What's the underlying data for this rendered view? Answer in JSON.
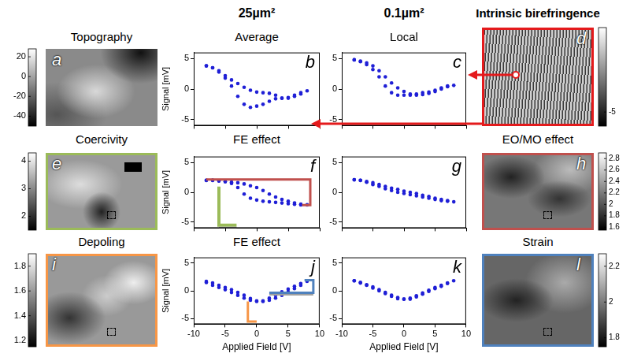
{
  "header_labels": [
    "25µm²",
    "0.1µm²"
  ],
  "maps": [
    {
      "letter": "a",
      "title": "Topography",
      "colorbar": {
        "range": [
          -50,
          28
        ],
        "ticks": [
          20,
          0,
          -20,
          -40
        ]
      }
    },
    {
      "letter": "d",
      "title": "Intrinsic birefringence",
      "colorbar": {
        "range": [
          -7,
          7
        ],
        "ticks": [
          -5
        ]
      },
      "color": "#e41a1c"
    },
    {
      "letter": "e",
      "title": "Coercivity",
      "colorbar": {
        "range": [
          1.5,
          4.3
        ],
        "ticks": [
          4,
          3,
          2
        ]
      },
      "color": "#9bbb59"
    },
    {
      "letter": "h",
      "title": "EO/MO effect",
      "colorbar": {
        "range": [
          1.55,
          2.9
        ],
        "ticks": [
          2.8,
          2.6,
          2.4,
          2.2,
          2,
          1.8,
          1.6
        ]
      },
      "color": "#c0504d"
    },
    {
      "letter": "i",
      "title": "Depoling",
      "colorbar": {
        "range": [
          1.15,
          1.9
        ],
        "ticks": [
          1.8,
          1.6,
          1.4,
          1.2
        ]
      },
      "color": "#f79646"
    },
    {
      "letter": "l",
      "title": "Strain",
      "colorbar": {
        "range": [
          1.75,
          2.27
        ],
        "ticks": [
          2.2,
          2,
          1.8
        ]
      },
      "color": "#4f81bd"
    }
  ],
  "chart_data": [
    {
      "letter": "b",
      "type": "scatter",
      "title": "Average",
      "y_label": "Signal [mV]",
      "x": [
        -8,
        -7,
        -6,
        -5,
        -4,
        -3,
        -2,
        -1,
        0,
        1,
        2,
        3,
        4,
        5,
        6,
        7,
        8,
        7,
        6,
        5,
        4,
        3,
        2,
        1,
        0,
        -1,
        -2,
        -3,
        -4,
        -5,
        -6,
        -7,
        -8
      ],
      "values": [
        3.8,
        3.5,
        2.8,
        1.8,
        0.5,
        -1.2,
        -2.5,
        -3.0,
        -2.8,
        -2.5,
        -2.0,
        -1.6,
        -1.5,
        -1.4,
        -1.0,
        -0.6,
        -0.3,
        -0.8,
        -1.2,
        -1.5,
        -1.5,
        -1.0,
        -0.7,
        -0.6,
        -0.5,
        -0.2,
        0.3,
        0.9,
        1.5,
        2.2,
        3.0,
        3.5,
        3.8
      ],
      "color": "#1f1fd6",
      "marker": "circle",
      "xlim": [
        -10,
        10
      ],
      "ylim": [
        -6,
        6
      ],
      "xticks": [
        -10,
        -5,
        0,
        5,
        10
      ],
      "yticks": [
        -5,
        0,
        5
      ],
      "tick_labels": "y",
      "grid": false
    },
    {
      "letter": "c",
      "type": "scatter",
      "title": "Local",
      "x": [
        -8,
        -7,
        -6,
        -5,
        -4,
        -3,
        -2,
        -1,
        0,
        1,
        2,
        3,
        4,
        5,
        6,
        7,
        8,
        7,
        6,
        5,
        4,
        3,
        2,
        1,
        0,
        -1,
        -2,
        -3,
        -4,
        -5,
        -6,
        -7,
        -8
      ],
      "values": [
        4.8,
        4.5,
        4.0,
        3.2,
        2.0,
        0.5,
        -0.6,
        -1.0,
        -1.0,
        -1.0,
        -0.8,
        -0.6,
        -0.5,
        -0.2,
        0.2,
        0.5,
        0.6,
        0.4,
        0.0,
        -0.4,
        -0.7,
        -0.9,
        -1.0,
        -0.8,
        -0.4,
        0.2,
        1.0,
        2.0,
        3.0,
        3.8,
        4.3,
        4.6,
        4.8
      ],
      "color": "#1f1fd6",
      "marker": "circle",
      "xlim": [
        -10,
        10
      ],
      "ylim": [
        -6,
        6
      ],
      "xticks": [
        -10,
        -5,
        0,
        5,
        10
      ],
      "yticks": [
        -5,
        0,
        5
      ],
      "tick_labels": "y",
      "grid": false
    },
    {
      "letter": "f",
      "type": "scatter",
      "title": "FE effect",
      "y_label": "Signal [mV]",
      "x": [
        -8,
        -7,
        -6,
        -5,
        -4,
        -3,
        -2,
        -1,
        0,
        1,
        2,
        3,
        4,
        5,
        6,
        7,
        8,
        7,
        6,
        5,
        4,
        3,
        2,
        1,
        0,
        -1,
        -2,
        -3,
        -4,
        -5,
        -6,
        -7,
        -8
      ],
      "values": [
        2.0,
        2.0,
        1.9,
        1.8,
        1.5,
        0.8,
        -0.3,
        -1.0,
        -1.3,
        -1.5,
        -1.6,
        -1.7,
        -1.8,
        -1.9,
        -2.0,
        -2.1,
        -2.1,
        -2.0,
        -1.8,
        -1.5,
        -1.2,
        -0.8,
        -0.3,
        0.3,
        0.8,
        1.1,
        1.4,
        1.6,
        1.7,
        1.8,
        1.9,
        2.0,
        2.0
      ],
      "color": "#1f1fd6",
      "marker": "circle",
      "xlim": [
        -10,
        10
      ],
      "ylim": [
        -6,
        6
      ],
      "xticks": [
        -10,
        -5,
        0,
        5,
        10
      ],
      "yticks": [
        -5,
        0,
        5
      ],
      "tick_labels": "y",
      "grid": false
    },
    {
      "letter": "g",
      "type": "scatter",
      "x": [
        -8,
        -7,
        -6,
        -5,
        -4,
        -3,
        -2,
        -1,
        0,
        1,
        2,
        3,
        4,
        5,
        6,
        7,
        8,
        7,
        6,
        5,
        4,
        3,
        2,
        1,
        0,
        -1,
        -2,
        -3,
        -4,
        -5,
        -6,
        -7,
        -8
      ],
      "values": [
        2.1,
        2.0,
        1.7,
        1.3,
        1.0,
        0.6,
        0.3,
        0.0,
        -0.2,
        -0.4,
        -0.6,
        -0.8,
        -1.0,
        -1.2,
        -1.4,
        -1.5,
        -1.6,
        -1.4,
        -1.2,
        -1.0,
        -0.7,
        -0.5,
        -0.2,
        0.0,
        0.2,
        0.5,
        0.7,
        1.0,
        1.3,
        1.6,
        1.8,
        2.0,
        2.1
      ],
      "color": "#1f1fd6",
      "marker": "circle",
      "xlim": [
        -10,
        10
      ],
      "ylim": [
        -6,
        6
      ],
      "xticks": [
        -10,
        -5,
        0,
        5,
        10
      ],
      "yticks": [
        -5,
        0,
        5
      ],
      "tick_labels": "y",
      "grid": false
    },
    {
      "letter": "j",
      "type": "scatter",
      "title": "FE effect",
      "y_label": "Signal [mV]",
      "x_label": "Applied Field [V]",
      "x": [
        -8,
        -7,
        -6,
        -5,
        -4,
        -3,
        -2,
        -1,
        0,
        1,
        2,
        3,
        4,
        5,
        6,
        7,
        8,
        7,
        6,
        5,
        4,
        3,
        2,
        1,
        0,
        -1,
        -2,
        -3,
        -4,
        -5,
        -6,
        -7,
        -8
      ],
      "values": [
        1.7,
        1.4,
        1.0,
        0.6,
        0.2,
        -0.3,
        -0.8,
        -1.4,
        -1.8,
        -1.9,
        -1.7,
        -1.3,
        -0.8,
        -0.2,
        0.4,
        1.0,
        1.7,
        1.3,
        0.8,
        0.3,
        -0.2,
        -0.8,
        -1.3,
        -1.8,
        -1.9,
        -1.7,
        -1.3,
        -0.8,
        -0.3,
        0.2,
        0.6,
        1.0,
        1.5
      ],
      "color": "#1f1fd6",
      "marker": "circle",
      "xlim": [
        -10,
        10
      ],
      "ylim": [
        -6,
        6
      ],
      "xticks": [
        -10,
        -5,
        0,
        5,
        10
      ],
      "yticks": [
        -5,
        0,
        5
      ],
      "tick_labels": true,
      "grid": false
    },
    {
      "letter": "k",
      "type": "scatter",
      "x_label": "Applied Field [V]",
      "x": [
        -8,
        -7,
        -6,
        -5,
        -4,
        -3,
        -2,
        -1,
        0,
        1,
        2,
        3,
        4,
        5,
        6,
        7,
        8,
        7,
        6,
        5,
        4,
        3,
        2,
        1,
        0,
        -1,
        -2,
        -3,
        -4,
        -5,
        -6,
        -7,
        -8
      ],
      "values": [
        1.8,
        1.4,
        1.0,
        0.5,
        0.0,
        -0.5,
        -1.0,
        -1.4,
        -1.5,
        -1.3,
        -0.9,
        -0.4,
        0.1,
        0.6,
        1.0,
        1.4,
        1.8,
        1.3,
        0.8,
        0.4,
        -0.1,
        -0.6,
        -1.1,
        -1.5,
        -1.5,
        -1.2,
        -0.8,
        -0.3,
        0.2,
        0.7,
        1.1,
        1.5,
        1.8
      ],
      "color": "#1f1fd6",
      "marker": "circle",
      "xlim": [
        -10,
        10
      ],
      "ylim": [
        -6,
        6
      ],
      "xticks": [
        -10,
        -5,
        0,
        5,
        10
      ],
      "yticks": [
        -5,
        0,
        5
      ],
      "tick_labels": true,
      "grid": false
    }
  ]
}
